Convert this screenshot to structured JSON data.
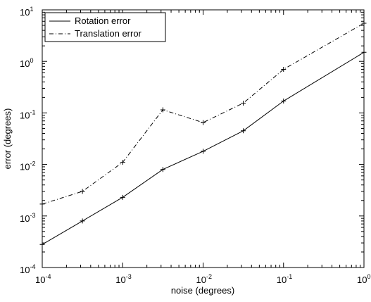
{
  "chart_data": {
    "type": "line",
    "xscale": "log",
    "yscale": "log",
    "xlabel": "noise (degrees)",
    "ylabel": "error (degrees)",
    "xlim": [
      0.0001,
      1
    ],
    "ylim": [
      0.0001,
      10
    ],
    "grid": false,
    "legend_position": "top-left",
    "x_ticks": [
      {
        "base": "10",
        "exp": "-4"
      },
      {
        "base": "10",
        "exp": "-3"
      },
      {
        "base": "10",
        "exp": "-2"
      },
      {
        "base": "10",
        "exp": "-1"
      },
      {
        "base": "10",
        "exp": "0"
      }
    ],
    "y_ticks": [
      {
        "base": "10",
        "exp": "-4"
      },
      {
        "base": "10",
        "exp": "-3"
      },
      {
        "base": "10",
        "exp": "-2"
      },
      {
        "base": "10",
        "exp": "-1"
      },
      {
        "base": "10",
        "exp": "0"
      },
      {
        "base": "10",
        "exp": "1"
      }
    ],
    "x": [
      0.0001,
      0.000316,
      0.001,
      0.00316,
      0.01,
      0.0316,
      0.1,
      1
    ],
    "series": [
      {
        "name": "Rotation error",
        "style": "solid",
        "values": [
          0.00028,
          0.0008,
          0.0023,
          0.008,
          0.018,
          0.045,
          0.17,
          1.5
        ]
      },
      {
        "name": "Translation error",
        "style": "dashdot",
        "values": [
          0.0017,
          0.003,
          0.011,
          0.115,
          0.065,
          0.155,
          0.7,
          5.5
        ]
      }
    ],
    "colors": {
      "line": "#000000",
      "background": "#ffffff"
    }
  }
}
